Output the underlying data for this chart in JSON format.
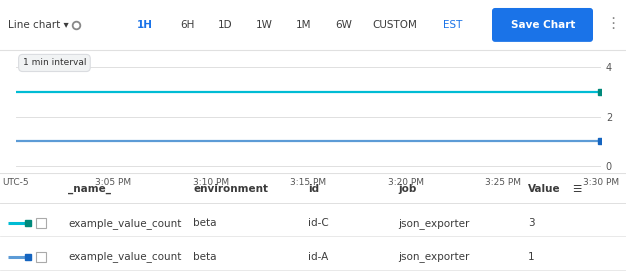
{
  "toolbar": {
    "left_label": "Line chart ▾",
    "time_buttons": [
      "1H",
      "6H",
      "1D",
      "1W",
      "1M",
      "6W",
      "CUSTOM",
      "EST"
    ],
    "active_time": "1H",
    "active_timezone": "EST",
    "save_button": "Save Chart"
  },
  "interval_label": "1 min interval",
  "chart": {
    "x_labels": [
      "UTC-5",
      "3:05 PM",
      "3:10 PM",
      "3:15 PM",
      "3:20 PM",
      "3:25 PM",
      "3:30 PM"
    ],
    "y_ticks": [
      0,
      2,
      4
    ],
    "bg_color": "#ffffff",
    "grid_color": "#e0e0e0",
    "lines": [
      {
        "color": "#00bcd4",
        "value": 3,
        "endpoint_color": "#00897b"
      },
      {
        "color": "#5c9bd6",
        "value": 1,
        "endpoint_color": "#1565c0"
      }
    ]
  },
  "table": {
    "header": [
      "_name_",
      "environment",
      "id",
      "job",
      "Value"
    ],
    "rows": [
      {
        "name": "example_value_count",
        "environment": "beta",
        "id": "id-C",
        "job": "json_exporter",
        "value": "3",
        "line_color": "#00bcd4",
        "dot_color": "#00897b"
      },
      {
        "name": "example_value_count",
        "environment": "beta",
        "id": "id-A",
        "job": "json_exporter",
        "value": "1",
        "line_color": "#5c9bd6",
        "dot_color": "#1565c0"
      }
    ]
  },
  "colors": {
    "toolbar_bg": "#ffffff",
    "active_button_color": "#1a73e8",
    "save_button_bg": "#1a73e8",
    "save_button_text": "#ffffff",
    "border_color": "#e0e0e0",
    "text_color": "#3c3c3c",
    "header_text": "#3c3c3c",
    "interval_bg": "#f1f3f4",
    "interval_border": "#dadce0",
    "muted": "#888888"
  }
}
